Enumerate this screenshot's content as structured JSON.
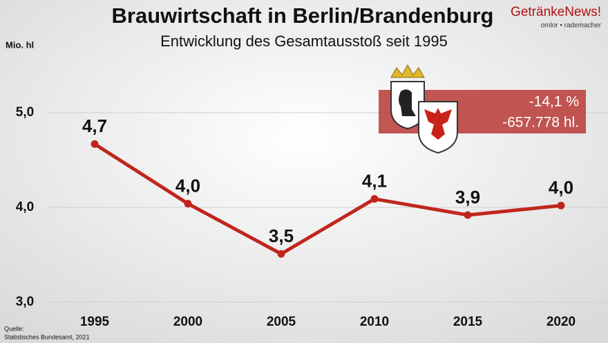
{
  "chart_data": {
    "type": "line",
    "title": "Brauwirtschaft in Berlin/Brandenburg",
    "subtitle": "Entwicklung des Gesamtausstoß seit 1995",
    "y_label": "Mio. hl",
    "categories": [
      "1995",
      "2000",
      "2005",
      "2010",
      "2015",
      "2020"
    ],
    "series": [
      {
        "color": "#c0261d",
        "values": [
          4.67,
          4.04,
          3.51,
          4.09,
          3.92,
          4.02
        ],
        "value_labels": [
          "4,7",
          "4,0",
          "3,5",
          "4,1",
          "3,9",
          "4,0"
        ]
      }
    ],
    "ylim": [
      3,
      5
    ],
    "yticks": [
      {
        "value": 3,
        "label": "3,0"
      },
      {
        "value": 4,
        "label": "4,0"
      },
      {
        "value": 5,
        "label": "5,0"
      }
    ],
    "grid": true,
    "annotations": [
      "-14,1 %",
      "-657.778 hl."
    ],
    "source": [
      "Quelle:",
      "Statistisches Bundesamt, 2021"
    ]
  },
  "logo": {
    "brand": "GetränkeNews!",
    "tagline": "omlor • rademacher"
  }
}
